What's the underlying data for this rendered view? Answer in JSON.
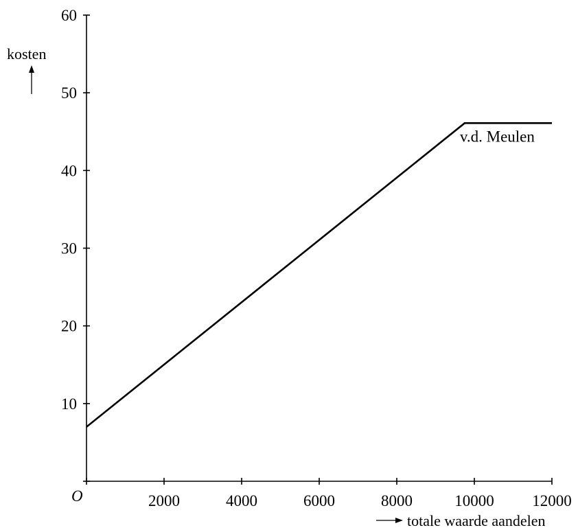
{
  "chart_data": {
    "type": "line",
    "xlabel": "totale waarde aandelen",
    "ylabel": "kosten",
    "origin_label": "O",
    "xlim": [
      0,
      12000
    ],
    "ylim": [
      0,
      60
    ],
    "x_ticks": [
      0,
      2000,
      4000,
      6000,
      8000,
      10000,
      12000
    ],
    "x_tick_labels": [
      "",
      "2000",
      "4000",
      "6000",
      "8000",
      "10000",
      "12000"
    ],
    "y_ticks": [
      0,
      10,
      20,
      30,
      40,
      50,
      60
    ],
    "y_tick_labels": [
      "",
      "10",
      "20",
      "30",
      "40",
      "50",
      "60"
    ],
    "grid": false,
    "series": [
      {
        "name": "v.d. Meulen",
        "x": [
          0,
          9750,
          12000
        ],
        "y": [
          7,
          46.1,
          46.1
        ]
      }
    ]
  }
}
